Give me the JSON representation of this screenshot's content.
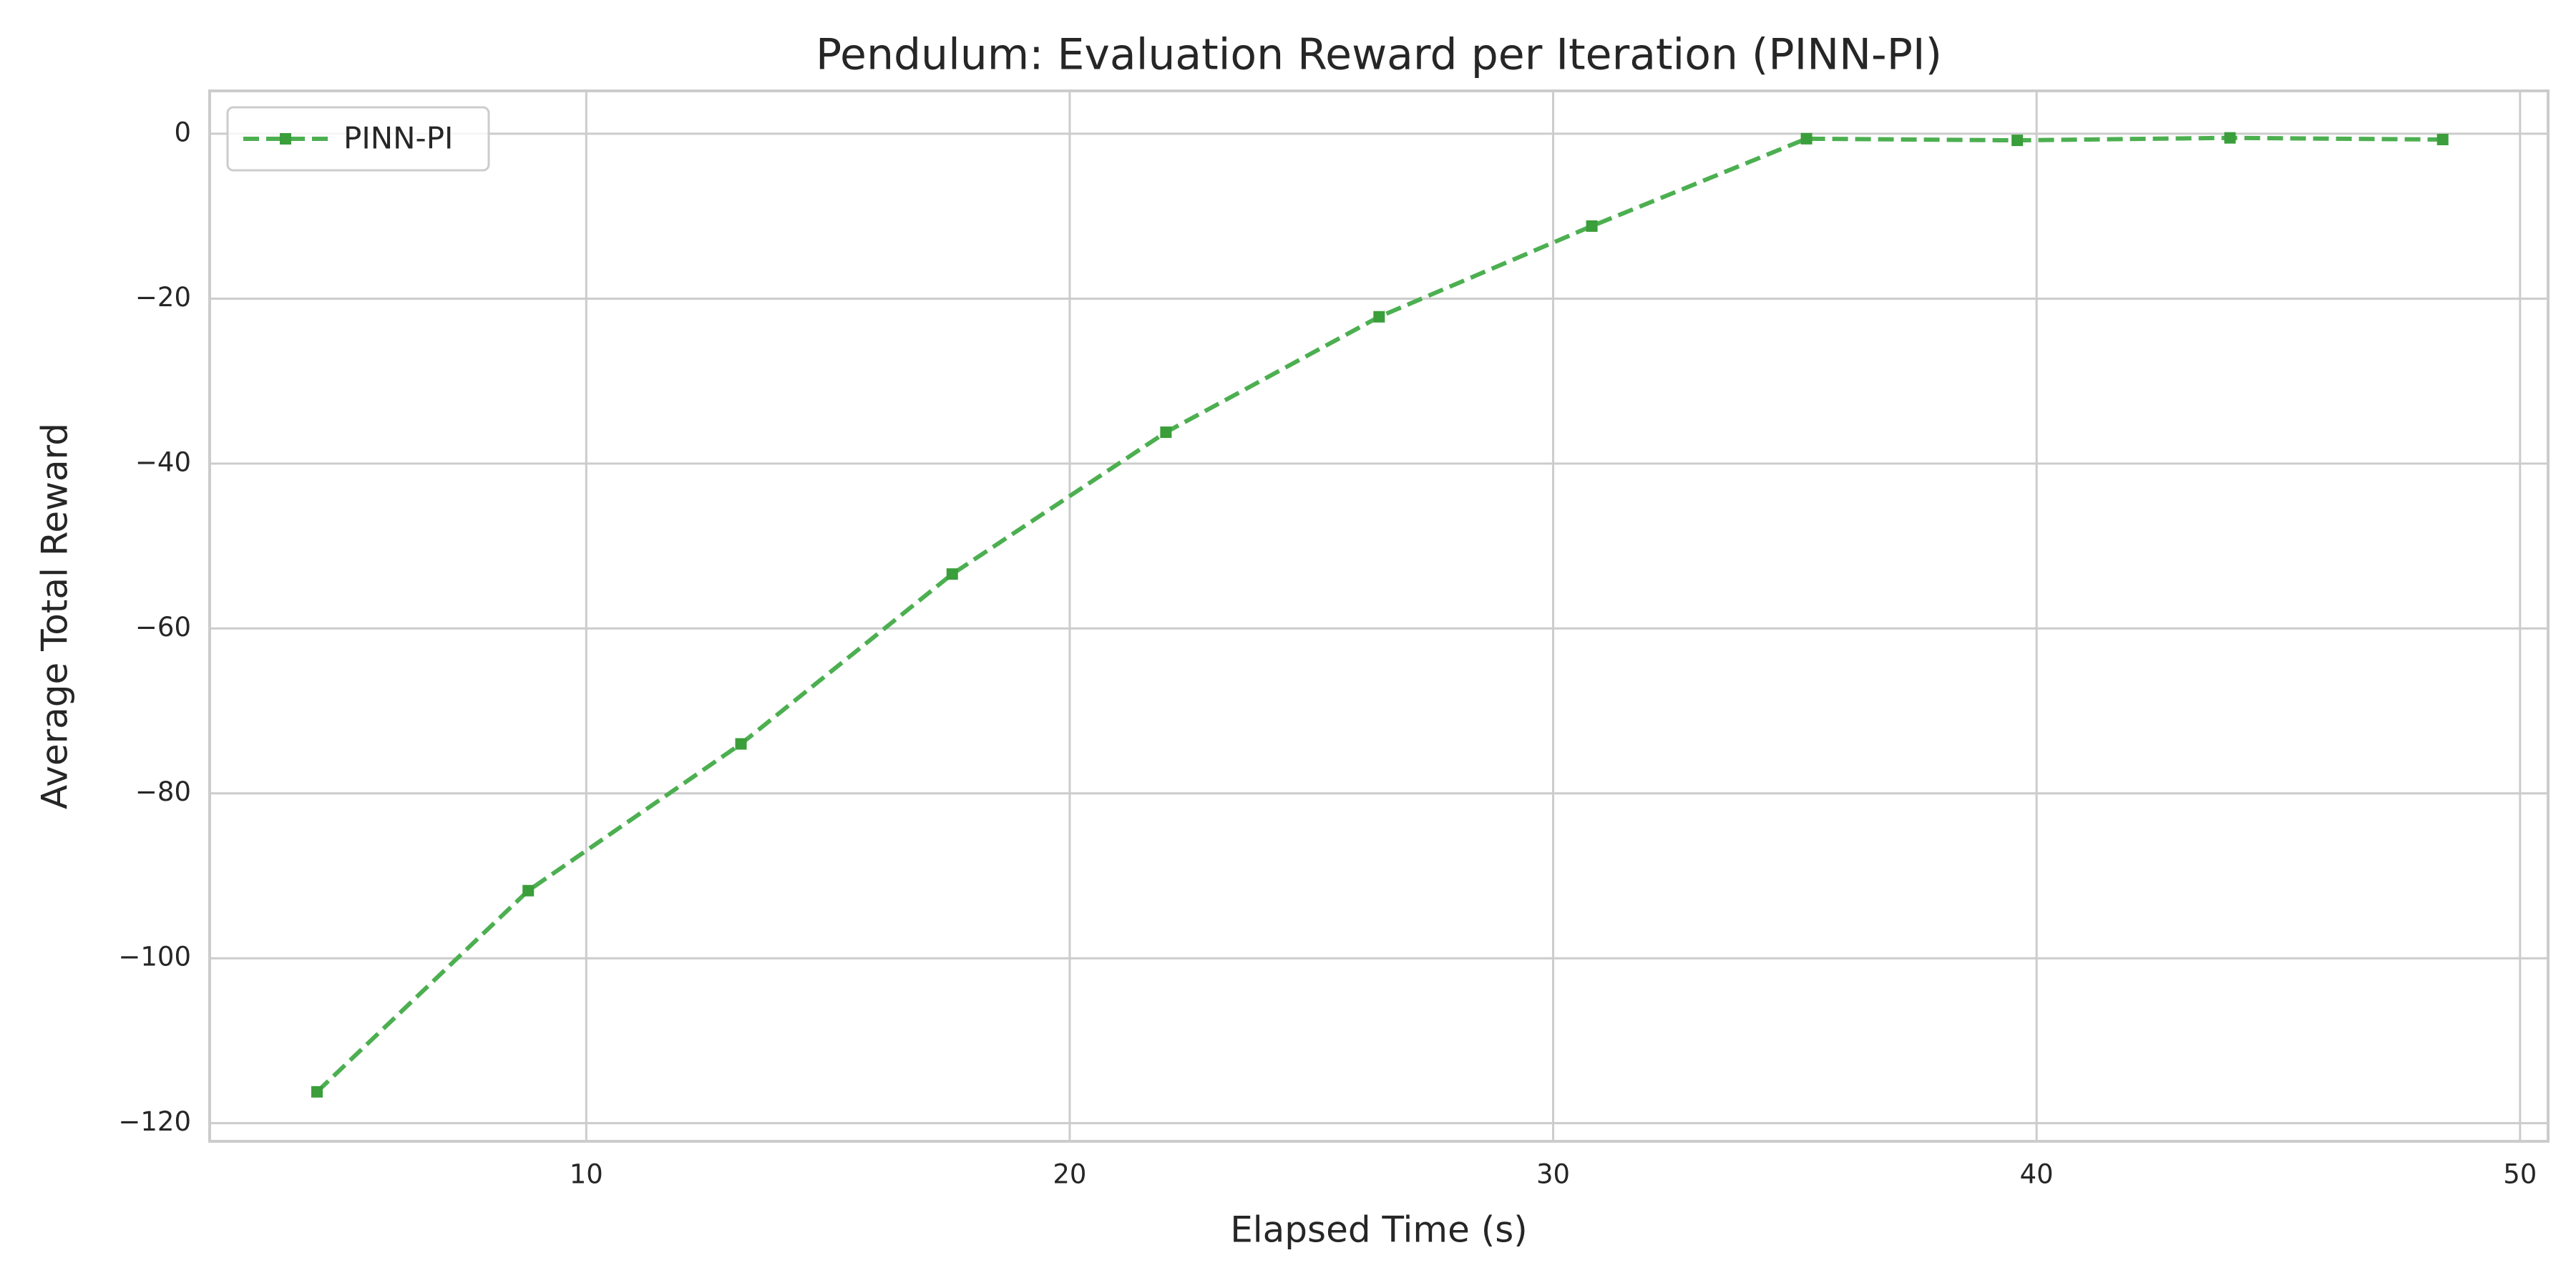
{
  "chart_data": {
    "type": "line",
    "title": "Pendulum: Evaluation Reward per Iteration (PINN-PI)",
    "x_label": "Elapsed Time (s)",
    "y_label": "Average Total Reward",
    "x": [
      4.43,
      8.8,
      13.2,
      17.57,
      21.99,
      26.4,
      30.8,
      35.24,
      39.6,
      44.0,
      48.4
    ],
    "series": [
      {
        "name": "PINN-PI",
        "color": "#4caf50",
        "marker_color": "#3a9e3a",
        "values": [
          -116.2,
          -91.8,
          -74,
          -53.4,
          -36.2,
          -22.2,
          -11.2,
          -0.6,
          -0.8,
          -0.5,
          -0.7
        ]
      }
    ],
    "xlim": [
      2.21,
      50.58
    ],
    "ylim": [
      -122.2,
      5.2
    ],
    "xticks": [
      10,
      20,
      30,
      40,
      50
    ],
    "yticks": [
      {
        "value": 0,
        "label": "0"
      },
      {
        "value": -20,
        "label": "−20"
      },
      {
        "value": -40,
        "label": "−40"
      },
      {
        "value": -60,
        "label": "−60"
      },
      {
        "value": -80,
        "label": "−80"
      },
      {
        "value": -100,
        "label": "−100"
      },
      {
        "value": -120,
        "label": "−120"
      }
    ],
    "grid": true,
    "legend": "upper left"
  }
}
